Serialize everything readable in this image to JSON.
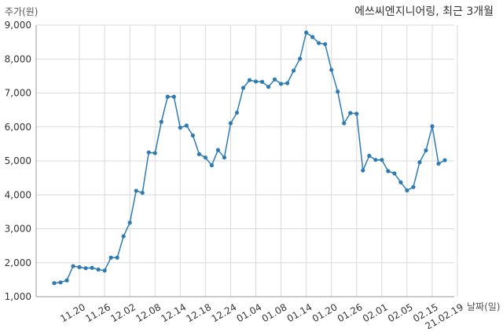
{
  "chart_data": {
    "type": "line",
    "title": "에쓰씨엔지니어링, 최근 3개월",
    "ylabel": "주가(원)",
    "xlabel": "날짜(일)",
    "ylim": [
      1000,
      9000
    ],
    "yticks": [
      "1,000",
      "2,000",
      "3,000",
      "4,000",
      "5,000",
      "6,000",
      "7,000",
      "8,000",
      "9,000"
    ],
    "xticks": [
      {
        "label": "11.20",
        "index": 4
      },
      {
        "label": "11.26",
        "index": 8
      },
      {
        "label": "12.02",
        "index": 12
      },
      {
        "label": "12.08",
        "index": 16
      },
      {
        "label": "12.14",
        "index": 20
      },
      {
        "label": "12.18",
        "index": 24
      },
      {
        "label": "12.24",
        "index": 28
      },
      {
        "label": "01.04",
        "index": 32
      },
      {
        "label": "01.08",
        "index": 36
      },
      {
        "label": "01.14",
        "index": 40
      },
      {
        "label": "01.20",
        "index": 44
      },
      {
        "label": "01.26",
        "index": 48
      },
      {
        "label": "02.01",
        "index": 52
      },
      {
        "label": "02.05",
        "index": 56
      },
      {
        "label": "02.15",
        "index": 60
      },
      {
        "label": "21.02.19",
        "index": 64
      }
    ],
    "grid": true,
    "line_color": "#2e7bb4",
    "series": [
      {
        "values": [
          1400,
          1420,
          1480,
          1900,
          1870,
          1840,
          1850,
          1800,
          1770,
          2150,
          2150,
          2780,
          3180,
          4120,
          4060,
          5250,
          5230,
          6150,
          6890,
          6890,
          5980,
          6040,
          5750,
          5200,
          5100,
          4870,
          5320,
          5100,
          6110,
          6420,
          7150,
          7380,
          7340,
          7330,
          7180,
          7400,
          7270,
          7290,
          7660,
          8010,
          8780,
          8650,
          8470,
          8440,
          7680,
          7040,
          6110,
          6410,
          6390,
          4720,
          5150,
          5030,
          5030,
          4700,
          4630,
          4370,
          4130,
          4230,
          4960,
          5310,
          6020,
          4920,
          5020
        ]
      }
    ]
  }
}
